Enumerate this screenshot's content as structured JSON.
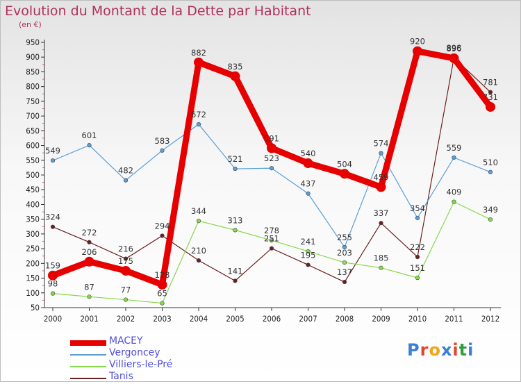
{
  "header": {
    "title": "Evolution du Montant de la Dette par Habitant",
    "unit": "(en €)"
  },
  "logo": {
    "text": "Proxiti",
    "letter_colors": [
      "#3a7fd5",
      "#e2452a",
      "#f2a516",
      "#3a7fd5",
      "#e2452a",
      "#2f9e3a",
      "#3a7fd5"
    ]
  },
  "chart_data": {
    "type": "line",
    "title": "Evolution du Montant de la Dette par Habitant",
    "ylabel": "(en €)",
    "xlabel": "",
    "x": [
      "2000",
      "2001",
      "2002",
      "2003",
      "2004",
      "2005",
      "2006",
      "2007",
      "2008",
      "2009",
      "2010",
      "2011",
      "2012"
    ],
    "ylim": [
      50,
      950
    ],
    "yticks": [
      50,
      100,
      150,
      200,
      250,
      300,
      350,
      400,
      450,
      500,
      550,
      600,
      650,
      700,
      750,
      800,
      850,
      900,
      950
    ],
    "grid": false,
    "legend_position": "bottom-left",
    "series": [
      {
        "name": "Tanis",
        "color": "#6b1f1f",
        "values": [
          324,
          272,
          216,
          294,
          210,
          141,
          251,
          195,
          137,
          337,
          222,
          898,
          781
        ]
      },
      {
        "name": "Villiers-le-Pré",
        "color": "#86d94a",
        "values": [
          98,
          87,
          77,
          65,
          344,
          313,
          278,
          241,
          203,
          185,
          151,
          409,
          349
        ]
      },
      {
        "name": "Vergoncey",
        "color": "#5b9fd6",
        "values": [
          549,
          601,
          482,
          583,
          672,
          521,
          523,
          437,
          255,
          574,
          354,
          559,
          510
        ]
      },
      {
        "name": "MACEY",
        "color": "#e60000",
        "values": [
          159,
          206,
          175,
          128,
          882,
          835,
          591,
          540,
          504,
          459,
          920,
          896,
          731
        ]
      }
    ]
  },
  "legend": {
    "items": [
      {
        "name": "MACEY",
        "color": "#e60000"
      },
      {
        "name": "Vergoncey",
        "color": "#5b9fd6"
      },
      {
        "name": "Villiers-le-Pré",
        "color": "#86d94a"
      },
      {
        "name": "Tanis",
        "color": "#6b1f1f"
      }
    ]
  }
}
